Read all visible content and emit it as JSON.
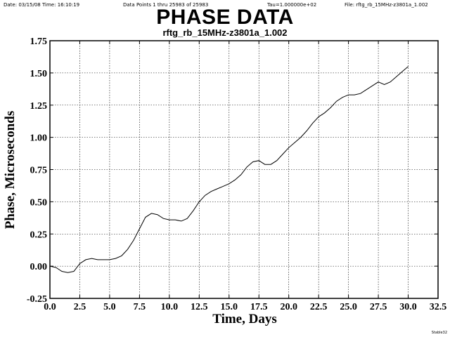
{
  "header": {
    "date": "Date: 03/15/08  Time: 16:10:19",
    "points": "Data Points 1 thru 25983 of 25983",
    "tau": "Tau=1.000000e+02",
    "file": "File: rftg_rb_15MHz-z3801a_1.002"
  },
  "corner_label": "Stable32",
  "chart_data": {
    "type": "line",
    "title": "PHASE DATA",
    "subtitle": "rftg_rb_15MHz-z3801a_1.002",
    "xlabel": "Time, Days",
    "ylabel": "Phase, Microseconds",
    "xlim": [
      0.0,
      32.5
    ],
    "ylim": [
      -0.25,
      1.75
    ],
    "xticks": [
      "0.0",
      "2.5",
      "5.0",
      "7.5",
      "10.0",
      "12.5",
      "15.0",
      "17.5",
      "20.0",
      "22.5",
      "25.0",
      "27.5",
      "30.0",
      "32.5"
    ],
    "yticks": [
      "-0.25",
      "0.00",
      "0.25",
      "0.50",
      "0.75",
      "1.00",
      "1.25",
      "1.50",
      "1.75"
    ],
    "grid": true,
    "line_color": "#000000",
    "series": [
      {
        "x": [
          0.0,
          0.5,
          1.0,
          1.5,
          2.0,
          2.5,
          3.0,
          3.5,
          4.0,
          4.5,
          5.0,
          5.5,
          6.0,
          6.5,
          7.0,
          7.5,
          8.0,
          8.5,
          9.0,
          9.5,
          10.0,
          10.5,
          11.0,
          11.5,
          12.0,
          12.5,
          13.0,
          13.5,
          14.0,
          14.5,
          15.0,
          15.5,
          16.0,
          16.5,
          17.0,
          17.5,
          18.0,
          18.5,
          19.0,
          19.5,
          20.0,
          20.5,
          21.0,
          21.5,
          22.0,
          22.5,
          23.0,
          23.5,
          24.0,
          24.5,
          25.0,
          25.5,
          26.0,
          26.5,
          27.0,
          27.5,
          28.0,
          28.5,
          29.0,
          29.5,
          30.0
        ],
        "values": [
          0.0,
          -0.01,
          -0.04,
          -0.05,
          -0.04,
          0.02,
          0.05,
          0.06,
          0.05,
          0.05,
          0.05,
          0.06,
          0.08,
          0.13,
          0.2,
          0.29,
          0.38,
          0.41,
          0.4,
          0.37,
          0.36,
          0.36,
          0.35,
          0.37,
          0.43,
          0.5,
          0.55,
          0.58,
          0.6,
          0.62,
          0.64,
          0.67,
          0.71,
          0.77,
          0.81,
          0.82,
          0.79,
          0.79,
          0.82,
          0.87,
          0.92,
          0.96,
          1.0,
          1.05,
          1.11,
          1.16,
          1.19,
          1.23,
          1.28,
          1.31,
          1.33,
          1.33,
          1.34,
          1.37,
          1.4,
          1.43,
          1.41,
          1.43,
          1.47,
          1.51,
          1.55
        ]
      }
    ]
  }
}
